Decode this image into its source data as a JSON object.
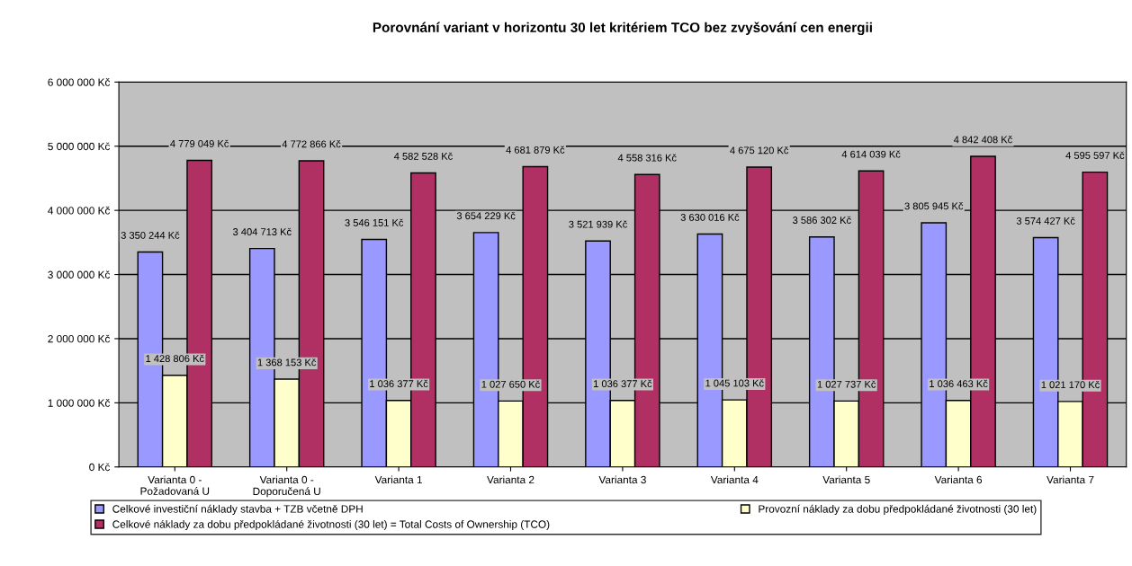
{
  "chart_data": {
    "type": "bar",
    "title": "Porovnání variant v horizontu 30 let kritériem TCO bez zvyšování cen energii",
    "categories": [
      "Varianta 0 -\nPožadovaná U",
      "Varianta 0 -\nDoporučená U",
      "Varianta 1",
      "Varianta 2",
      "Varianta 3",
      "Varianta 4",
      "Varianta 5",
      "Varianta 6",
      "Varianta 7"
    ],
    "series": [
      {
        "name": "Celkové investiční náklady stavba + TZB včetně DPH",
        "color": "#9999ff",
        "values": [
          3350244,
          3404713,
          3546151,
          3654229,
          3521939,
          3630016,
          3586302,
          3805945,
          3574427
        ],
        "value_labels": [
          "3 350 244 Kč",
          "3 404 713 Kč",
          "3 546 151 Kč",
          "3 654 229 Kč",
          "3 521 939 Kč",
          "3 630 016 Kč",
          "3 586 302 Kč",
          "3 805 945 Kč",
          "3 574 427 Kč"
        ]
      },
      {
        "name": "Provozní náklady za dobu předpokládané životnosti (30 let)",
        "color": "#ffffcc",
        "values": [
          1428806,
          1368153,
          1036377,
          1027650,
          1036377,
          1045103,
          1027737,
          1036463,
          1021170
        ],
        "value_labels": [
          "1 428 806 Kč",
          "1 368 153 Kč",
          "1 036 377 Kč",
          "1 027 650 Kč",
          "1 036 377 Kč",
          "1 045 103 Kč",
          "1 027 737 Kč",
          "1 036 463 Kč",
          "1 021 170 Kč"
        ]
      },
      {
        "name": "Celkové náklady za dobu předpokládané životnosti (30 let) = Total Costs of Ownership (TCO)",
        "color": "#b03064",
        "values": [
          4779049,
          4772866,
          4582528,
          4681879,
          4558316,
          4675120,
          4614039,
          4842408,
          4595597
        ],
        "value_labels": [
          "4 779 049 Kč",
          "4 772 866 Kč",
          "4 582 528 Kč",
          "4 681 879 Kč",
          "4 558 316 Kč",
          "4 675 120 Kč",
          "4 614 039 Kč",
          "4 842 408 Kč",
          "4 595 597 Kč"
        ]
      }
    ],
    "ylim": [
      0,
      6000000
    ],
    "yticks": [
      {
        "value": 0,
        "label": "0 Kč"
      },
      {
        "value": 1000000,
        "label": "1 000 000 Kč"
      },
      {
        "value": 2000000,
        "label": "2 000 000 Kč"
      },
      {
        "value": 3000000,
        "label": "3 000 000 Kč"
      },
      {
        "value": 4000000,
        "label": "4 000 000 Kč"
      },
      {
        "value": 5000000,
        "label": "5 000 000 Kč"
      },
      {
        "value": 6000000,
        "label": "6 000 000 Kč"
      }
    ],
    "grid": "y",
    "legend": "bottom"
  }
}
